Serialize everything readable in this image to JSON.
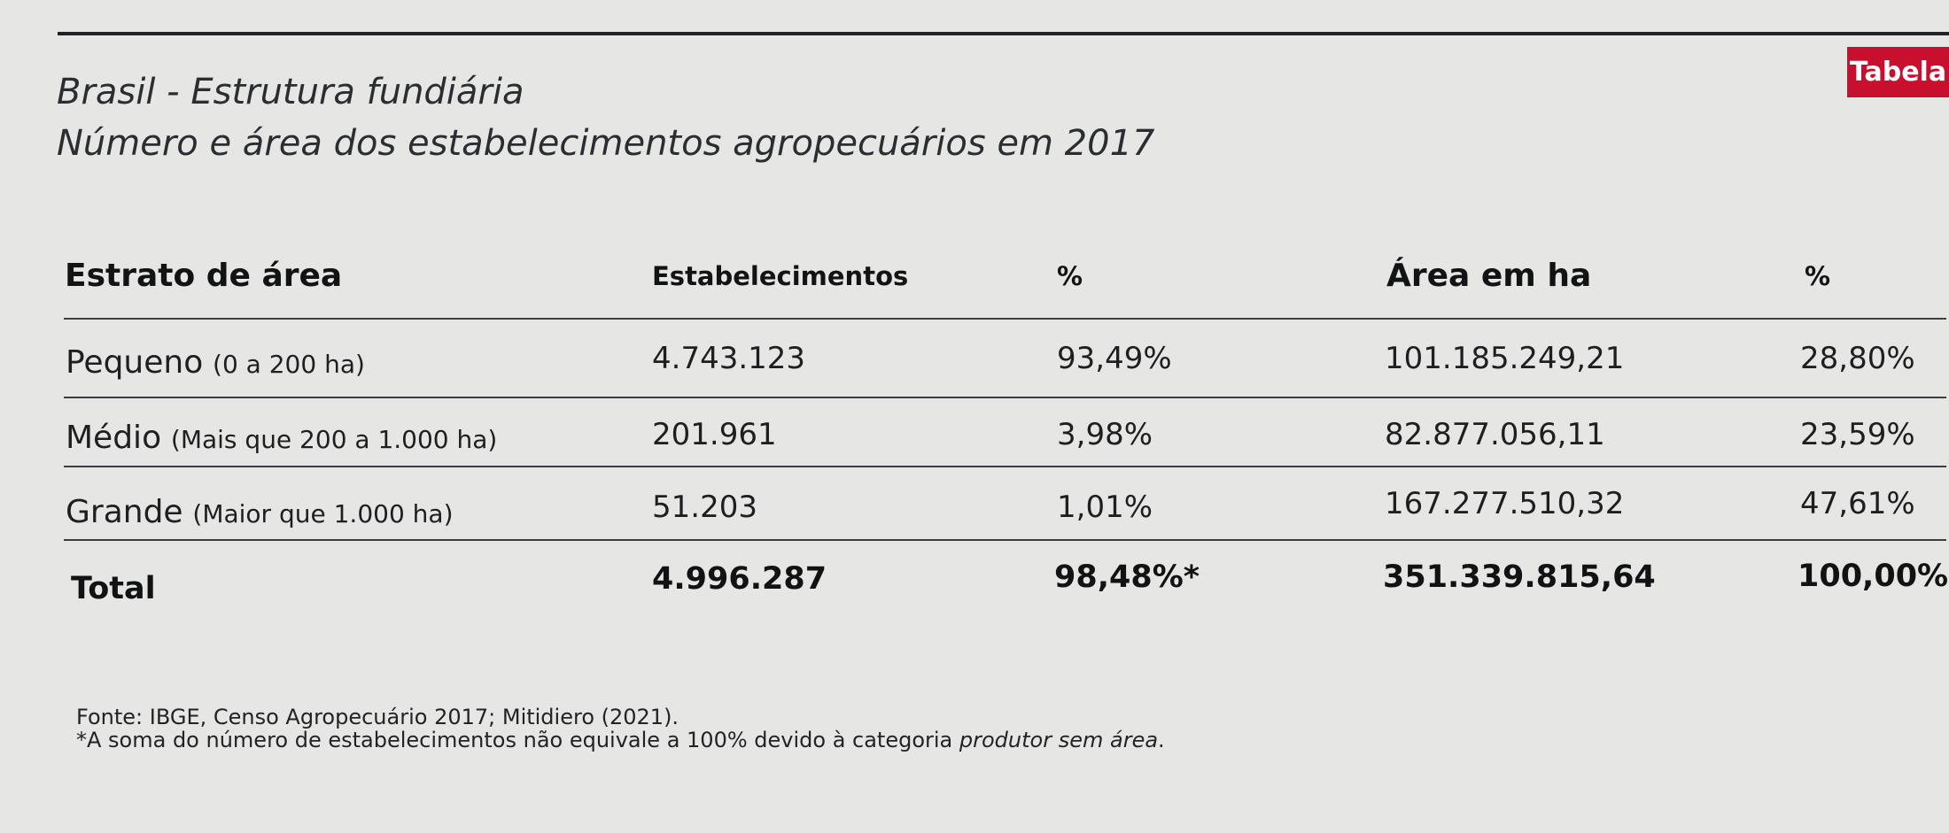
{
  "badge": "Tabela",
  "title": {
    "line1": "Brasil - Estrutura fundiária",
    "line2": "Número e área dos estabelecimentos agropecuários em 2017"
  },
  "table": {
    "headers": {
      "stratum": "Estrato de área",
      "establishments": "Estabelecimentos",
      "pct_establishments": "%",
      "area": "Área em ha",
      "pct_area": "%"
    },
    "rows": [
      {
        "label": "Pequeno",
        "sublabel": "(0 a 200 ha)",
        "establishments": "4.743.123",
        "pct_establishments": "93,49%",
        "area": "101.185.249,21",
        "pct_area": "28,80%"
      },
      {
        "label": "Médio",
        "sublabel": "(Mais que 200 a 1.000 ha)",
        "establishments": "201.961",
        "pct_establishments": "3,98%",
        "area": "82.877.056,11",
        "pct_area": "23,59%"
      },
      {
        "label": "Grande",
        "sublabel": "(Maior que 1.000 ha)",
        "establishments": "51.203",
        "pct_establishments": "1,01%",
        "area": "167.277.510,32",
        "pct_area": "47,61%"
      }
    ],
    "total": {
      "label": "Total",
      "establishments": "4.996.287",
      "pct_establishments": "98,48%*",
      "area": "351.339.815,64",
      "pct_area": "100,00%"
    }
  },
  "footnotes": {
    "source": "Fonte: IBGE, Censo Agropecuário 2017; Mitidiero (2021).",
    "note_prefix": "*A soma do número de estabelecimentos não equivale a 100% devido à categoria ",
    "note_emphasis": "produtor sem área",
    "note_suffix": "."
  }
}
